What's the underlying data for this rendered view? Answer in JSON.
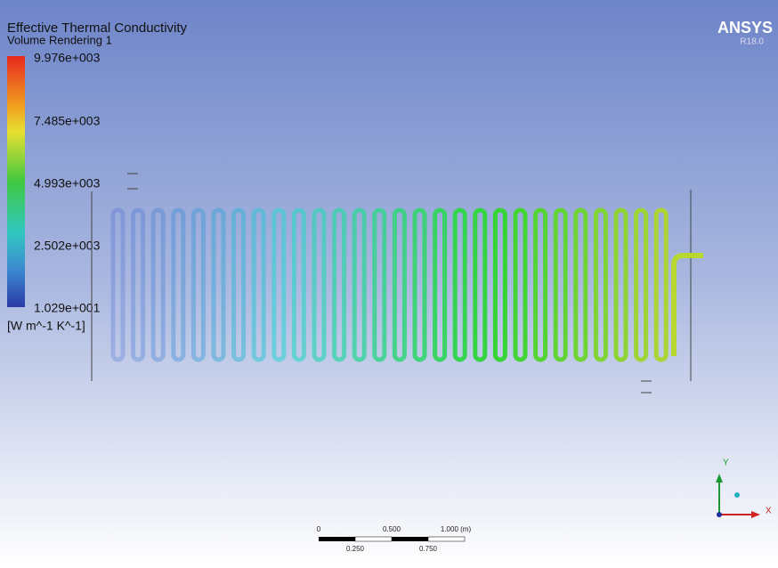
{
  "header": {
    "title": "Effective Thermal Conductivity",
    "subtitle": "Volume Rendering 1"
  },
  "legend": {
    "labels": [
      "9.976e+003",
      "7.485e+003",
      "4.993e+003",
      "2.502e+003",
      "1.029e+001"
    ],
    "unit": "[W m^-1 K^-1]"
  },
  "logo": {
    "name": "ANSYS",
    "version": "R18.0"
  },
  "scale_bar": {
    "top_labels": [
      "0",
      "0.500",
      "1.000 (m)"
    ],
    "bottom_labels": [
      "0.250",
      "0.750"
    ]
  },
  "axes": {
    "y": "Y",
    "x": "X"
  }
}
